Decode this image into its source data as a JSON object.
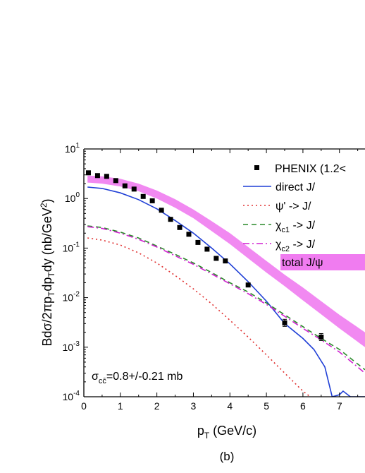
{
  "chart_data": {
    "type": "scatter",
    "caption": "(b)",
    "xlabel": {
      "main": "p",
      "sub": "T",
      "rest": " (GeV/c)"
    },
    "ylabel": "Bdσ/2πp_Tdp_Tdy (nb/GeV^2)",
    "annotation": {
      "prefix": "σ",
      "sub": "cc̄",
      "rest": "=0.8+/-0.21 mb"
    },
    "xlim": [
      0,
      7.7
    ],
    "ylim": [
      0.0001,
      10
    ],
    "yscale": "log",
    "x_ticks": [
      "0",
      "1",
      "2",
      "3",
      "4",
      "5",
      "6",
      "7"
    ],
    "y_ticks": [
      {
        "base": "10",
        "exp": "1"
      },
      {
        "base": "10",
        "exp": "0"
      },
      {
        "base": "10",
        "exp": "-1"
      },
      {
        "base": "10",
        "exp": "-2"
      },
      {
        "base": "10",
        "exp": "-3"
      },
      {
        "base": "10",
        "exp": "-4"
      }
    ],
    "legend": [
      {
        "key": "phenix",
        "text": "PHENIX (1.2<",
        "style": "square",
        "color": "#000000"
      },
      {
        "key": "direct",
        "text": "direct J/",
        "style": "solid",
        "color": "#1f3fd6"
      },
      {
        "key": "psiprime",
        "text": "ψ' -> J/",
        "style": "dotted",
        "color": "#e03030"
      },
      {
        "key": "chic1",
        "prefix": "χ",
        "sub": "c1",
        "text": " -> J/",
        "style": "dashed",
        "color": "#2a8a2a"
      },
      {
        "key": "chic2",
        "prefix": "χ",
        "sub": "c2",
        "text": " -> J/",
        "style": "dashdot",
        "color": "#d020d0"
      },
      {
        "key": "total",
        "text": "total J/ψ",
        "style": "band",
        "color": "#f07cf0"
      }
    ],
    "points": {
      "name": "PHENIX (1.2<",
      "x": [
        0.125,
        0.375,
        0.625,
        0.875,
        1.125,
        1.375,
        1.625,
        1.875,
        2.125,
        2.375,
        2.625,
        2.875,
        3.125,
        3.375,
        3.625,
        3.875,
        4.5,
        5.5,
        6.5
      ],
      "y": [
        3.3,
        2.9,
        2.8,
        2.3,
        1.8,
        1.55,
        1.1,
        0.9,
        0.58,
        0.38,
        0.26,
        0.19,
        0.13,
        0.095,
        0.062,
        0.055,
        0.018,
        0.0031,
        0.0016
      ]
    },
    "series": [
      {
        "key": "direct",
        "x": [
          0.1,
          0.5,
          1.0,
          1.5,
          2.0,
          2.5,
          3.0,
          3.5,
          4.0,
          4.5,
          5.0,
          5.5,
          6.0,
          6.3,
          6.6,
          6.8,
          7.0,
          7.1,
          7.3,
          7.7
        ],
        "y": [
          1.7,
          1.6,
          1.3,
          0.95,
          0.62,
          0.36,
          0.2,
          0.1,
          0.048,
          0.021,
          0.0085,
          0.003,
          0.0015,
          0.0009,
          0.0004,
          0.0001,
          0.00011,
          0.00013,
          0.0001,
          0.0001
        ]
      },
      {
        "key": "psiprime",
        "x": [
          0.1,
          0.5,
          1.0,
          1.5,
          2.0,
          2.5,
          3.0,
          3.5,
          4.0,
          4.5,
          5.0,
          5.5,
          6.0,
          6.2
        ],
        "y": [
          0.16,
          0.145,
          0.115,
          0.08,
          0.05,
          0.028,
          0.015,
          0.0075,
          0.0035,
          0.0016,
          0.0007,
          0.0003,
          0.00013,
          0.0001
        ]
      },
      {
        "key": "chic1",
        "x": [
          0.1,
          0.5,
          1.0,
          1.5,
          2.0,
          2.5,
          3.0,
          3.5,
          4.0,
          4.5,
          5.0,
          5.5,
          6.0,
          6.5,
          7.0,
          7.7
        ],
        "y": [
          0.28,
          0.26,
          0.21,
          0.16,
          0.11,
          0.075,
          0.05,
          0.032,
          0.02,
          0.013,
          0.0078,
          0.0045,
          0.0026,
          0.0015,
          0.0009,
          0.00035
        ]
      },
      {
        "key": "chic2",
        "x": [
          0.1,
          0.5,
          1.0,
          1.5,
          2.0,
          2.5,
          3.0,
          3.5,
          4.0,
          4.5,
          5.0,
          5.5,
          6.0,
          6.5,
          7.0,
          7.7
        ],
        "y": [
          0.27,
          0.25,
          0.2,
          0.15,
          0.105,
          0.07,
          0.047,
          0.03,
          0.019,
          0.012,
          0.0073,
          0.0042,
          0.0024,
          0.0014,
          0.0008,
          0.0003
        ]
      }
    ],
    "band": {
      "key": "total",
      "x": [
        0.1,
        0.5,
        1.0,
        1.5,
        2.0,
        2.5,
        3.0,
        3.5,
        4.0,
        4.5,
        5.0,
        5.5,
        6.0,
        6.5,
        7.0,
        7.7
      ],
      "lower": [
        2.1,
        2.0,
        1.75,
        1.4,
        1.0,
        0.65,
        0.4,
        0.22,
        0.12,
        0.062,
        0.032,
        0.017,
        0.0088,
        0.0046,
        0.0024,
        0.001
      ],
      "upper": [
        2.9,
        2.8,
        2.5,
        2.0,
        1.45,
        0.97,
        0.6,
        0.35,
        0.2,
        0.105,
        0.055,
        0.029,
        0.016,
        0.0085,
        0.0045,
        0.002
      ]
    }
  }
}
